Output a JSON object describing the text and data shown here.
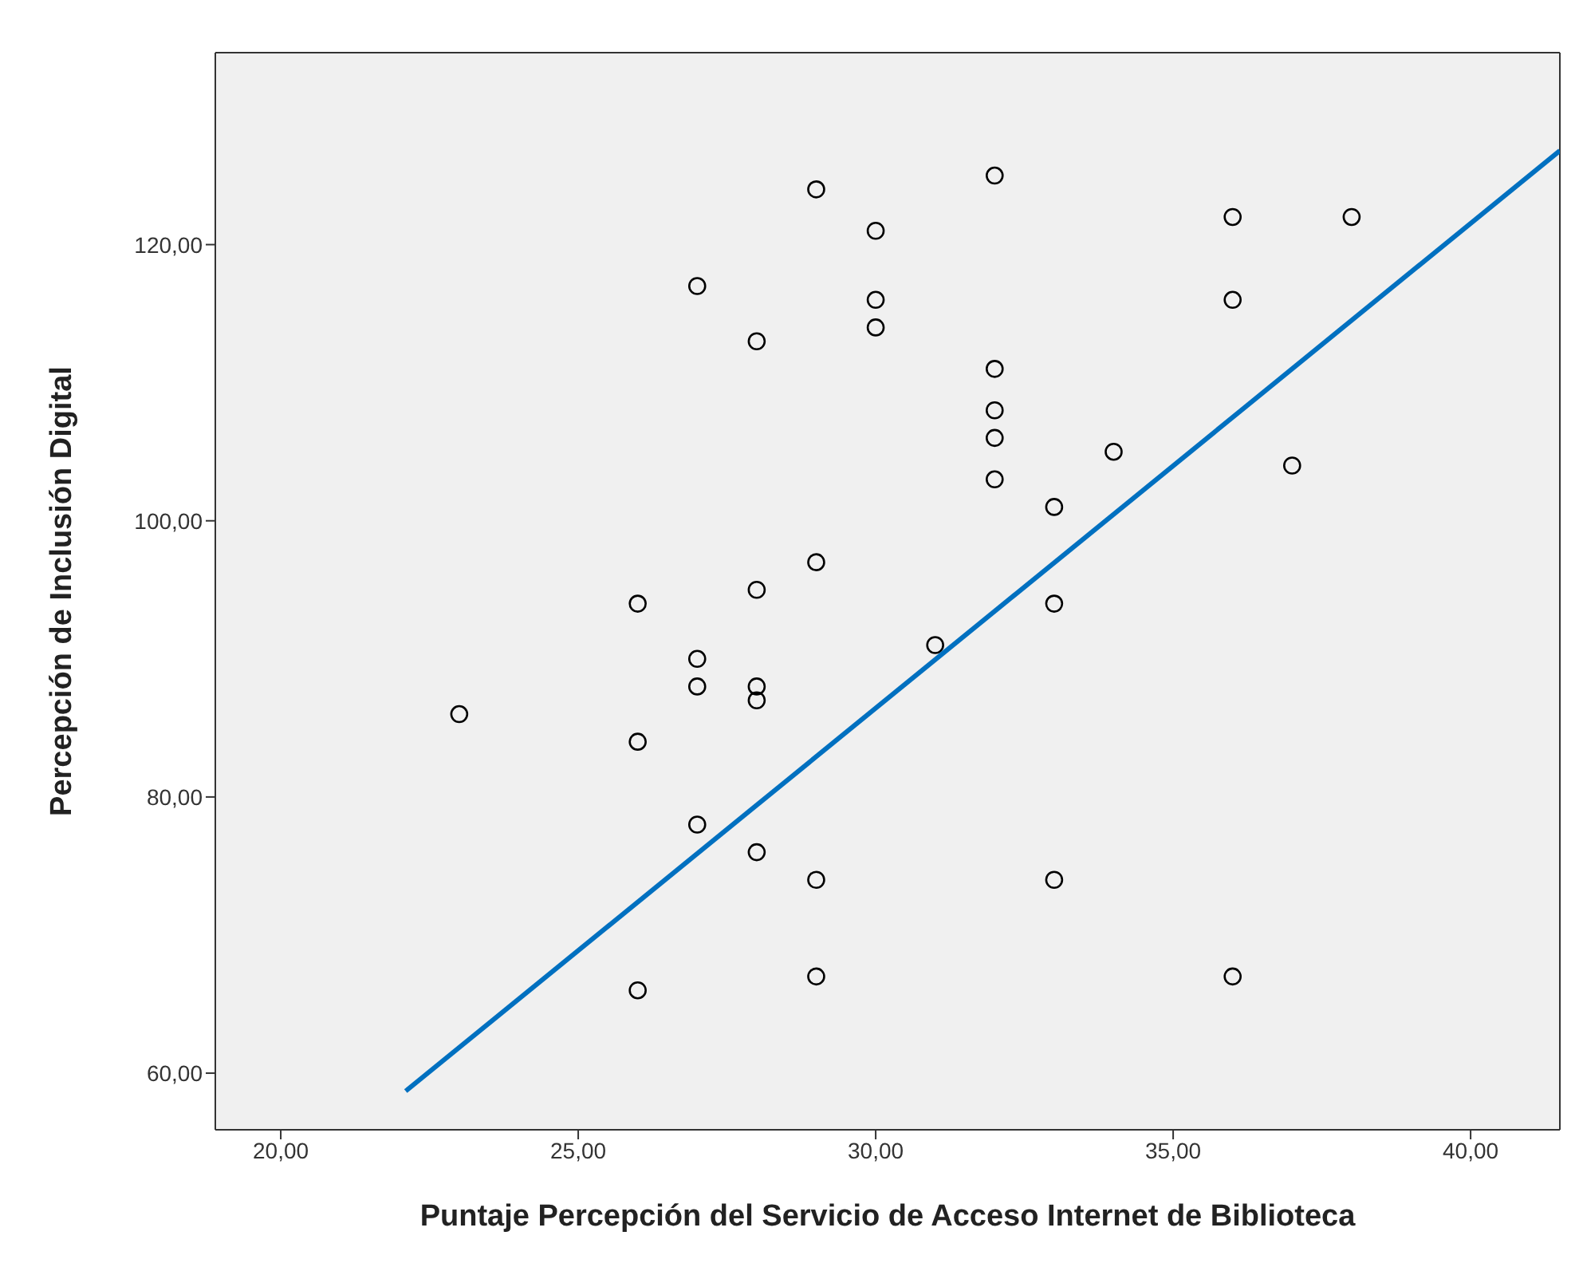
{
  "chart_data": {
    "type": "scatter",
    "xlabel": "Puntaje Percepción del Servicio de Acceso Internet de Biblioteca",
    "ylabel": "Percepción de Inclusión Digital",
    "xlim": [
      18.9,
      41.5
    ],
    "ylim": [
      55.9,
      133.9
    ],
    "xticks": [
      {
        "value": 20,
        "label": "20,00"
      },
      {
        "value": 25,
        "label": "25,00"
      },
      {
        "value": 30,
        "label": "30,00"
      },
      {
        "value": 35,
        "label": "35,00"
      },
      {
        "value": 40,
        "label": "40,00"
      }
    ],
    "yticks": [
      {
        "value": 60,
        "label": "60,00"
      },
      {
        "value": 80,
        "label": "80,00"
      },
      {
        "value": 100,
        "label": "100,00"
      },
      {
        "value": 120,
        "label": "120,00"
      }
    ],
    "grid": false,
    "series": [
      {
        "marker": "circle",
        "color": "#000000",
        "x": [
          23,
          26,
          26,
          26,
          27,
          27,
          27,
          27,
          28,
          28,
          28,
          28,
          28,
          29,
          29,
          29,
          29,
          30,
          30,
          30,
          31,
          32,
          32,
          32,
          32,
          32,
          33,
          33,
          33,
          34,
          36,
          36,
          36,
          37,
          38
        ],
        "values": [
          86,
          94,
          84,
          66,
          117,
          90,
          88,
          78,
          113,
          95,
          88,
          87,
          76,
          124,
          97,
          74,
          67,
          121,
          116,
          114,
          91,
          125,
          111,
          108,
          106,
          103,
          101,
          94,
          74,
          105,
          122,
          116,
          67,
          104,
          122
        ]
      },
      {
        "type": "line",
        "color": "#0070c0",
        "x": [
          22.1,
          41.5
        ],
        "values": [
          58.7,
          126.8
        ]
      }
    ]
  }
}
